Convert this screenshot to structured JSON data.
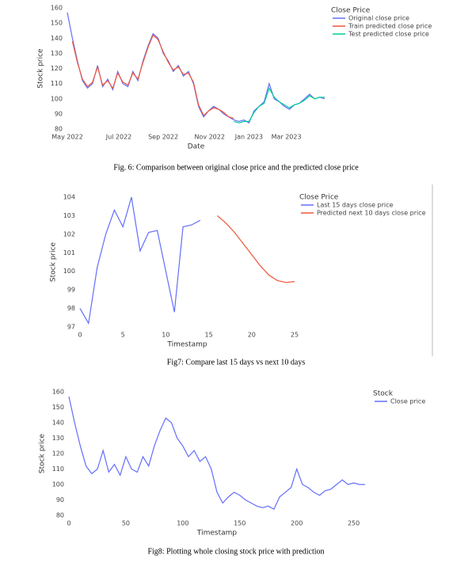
{
  "chart_data": [
    {
      "type": "line",
      "caption": "Fig. 6:  Comparison between original close price and the predicted close price",
      "xlabel": "Date",
      "ylabel": "Stock price",
      "legend_title": "Close Price",
      "xlim": [
        0,
        255
      ],
      "ylim": [
        80,
        160
      ],
      "xticks": [
        {
          "value": 0,
          "label": "May 2022"
        },
        {
          "value": 51,
          "label": "Jul 2022"
        },
        {
          "value": 95,
          "label": "Sep 2022"
        },
        {
          "value": 141,
          "label": "Nov 2022"
        },
        {
          "value": 180,
          "label": "Jan 2023"
        },
        {
          "value": 217,
          "label": "Mar 2023"
        }
      ],
      "yticks": [
        80,
        90,
        100,
        110,
        120,
        130,
        140,
        150,
        160
      ],
      "series": [
        {
          "name": "Original close price",
          "color": "#636efa",
          "x": [
            0,
            5,
            10,
            15,
            20,
            25,
            30,
            35,
            40,
            45,
            50,
            55,
            60,
            65,
            70,
            75,
            80,
            85,
            90,
            95,
            100,
            105,
            110,
            115,
            120,
            125,
            130,
            135,
            140,
            145,
            150,
            155,
            160,
            165,
            170,
            175,
            180,
            185,
            190,
            195,
            200,
            205,
            210,
            215,
            220,
            225,
            230,
            235,
            240,
            245,
            250,
            255
          ],
          "values": [
            157,
            140,
            125,
            112,
            107,
            110,
            122,
            108,
            113,
            106,
            118,
            110,
            108,
            118,
            112,
            125,
            135,
            143,
            140,
            130,
            125,
            118,
            122,
            115,
            118,
            110,
            95,
            88,
            92,
            95,
            93,
            90,
            88,
            86,
            85,
            86,
            84,
            92,
            95,
            98,
            110,
            100,
            98,
            95,
            93,
            96,
            97,
            100,
            103,
            100,
            101,
            100
          ]
        },
        {
          "name": "Train predicted close price",
          "color": "#ef553b",
          "x": [
            5,
            10,
            15,
            20,
            25,
            30,
            35,
            40,
            45,
            50,
            55,
            60,
            65,
            70,
            75,
            80,
            85,
            90,
            95,
            100,
            105,
            110,
            115,
            120,
            125,
            130,
            135,
            140,
            145,
            150,
            155,
            160,
            165
          ],
          "values": [
            138,
            124,
            113,
            108,
            111,
            121,
            109,
            112,
            107,
            117,
            111,
            109,
            117,
            113,
            124,
            134,
            142,
            139,
            131,
            124,
            119,
            121,
            116,
            117,
            111,
            96,
            89,
            92,
            94,
            93,
            91,
            88,
            87
          ]
        },
        {
          "name": "Test predicted close price",
          "color": "#00cc96",
          "x": [
            165,
            170,
            175,
            180,
            185,
            190,
            195,
            200,
            205,
            210,
            215,
            220,
            225,
            230,
            235,
            240,
            245,
            250,
            255
          ],
          "values": [
            85,
            84,
            85,
            85,
            91,
            95,
            97,
            107,
            101,
            98,
            96,
            94,
            96,
            97,
            99,
            102,
            100,
            101,
            101
          ]
        }
      ]
    },
    {
      "type": "line",
      "caption": "Fig7:  Compare last 15 days vs next 10 days",
      "xlabel": "Timestamp",
      "ylabel": "Stock price",
      "legend_title": "Close Price",
      "xlim": [
        0,
        25
      ],
      "ylim": [
        97,
        104
      ],
      "xticks": [
        0,
        5,
        10,
        15,
        20,
        25
      ],
      "yticks": [
        97,
        98,
        99,
        100,
        101,
        102,
        103,
        104
      ],
      "series": [
        {
          "name": "Last 15 days close price",
          "color": "#636efa",
          "x": [
            0,
            1,
            2,
            3,
            4,
            5,
            6,
            7,
            8,
            9,
            10,
            11,
            12,
            13,
            14
          ],
          "values": [
            98,
            97.2,
            100.2,
            102,
            103.3,
            102.4,
            104,
            101.1,
            102.1,
            102.2,
            100,
            97.8,
            102.4,
            102.5,
            102.75
          ]
        },
        {
          "name": "Predicted next 10 days close price",
          "color": "#ef553b",
          "x": [
            16,
            17,
            18,
            19,
            20,
            21,
            22,
            23,
            24,
            25
          ],
          "values": [
            103,
            102.6,
            102.1,
            101.5,
            100.9,
            100.3,
            99.8,
            99.5,
            99.4,
            99.45
          ]
        }
      ]
    },
    {
      "type": "line",
      "caption": "Fig8:  Plotting whole closing stock price with prediction",
      "xlabel": "Timestamp",
      "ylabel": "Stock price",
      "legend_title": "Stock",
      "xlim": [
        0,
        260
      ],
      "ylim": [
        80,
        160
      ],
      "xticks": [
        0,
        50,
        100,
        150,
        200,
        250
      ],
      "yticks": [
        80,
        90,
        100,
        110,
        120,
        130,
        140,
        150,
        160
      ],
      "series": [
        {
          "name": "Close price",
          "color": "#636efa",
          "x": [
            0,
            5,
            10,
            15,
            20,
            25,
            30,
            35,
            40,
            45,
            50,
            55,
            60,
            65,
            70,
            75,
            80,
            85,
            90,
            95,
            100,
            105,
            110,
            115,
            120,
            125,
            130,
            135,
            140,
            145,
            150,
            155,
            160,
            165,
            170,
            175,
            180,
            185,
            190,
            195,
            200,
            205,
            210,
            215,
            220,
            225,
            230,
            235,
            240,
            245,
            250,
            255,
            260
          ],
          "values": [
            157,
            140,
            125,
            112,
            107,
            110,
            122,
            108,
            113,
            106,
            118,
            110,
            108,
            118,
            112,
            125,
            135,
            143,
            140,
            130,
            125,
            118,
            122,
            115,
            118,
            110,
            95,
            88,
            92,
            95,
            93,
            90,
            88,
            86,
            85,
            86,
            84,
            92,
            95,
            98,
            110,
            100,
            98,
            95,
            93,
            96,
            97,
            100,
            103,
            100,
            101,
            100,
            100
          ]
        }
      ]
    }
  ]
}
